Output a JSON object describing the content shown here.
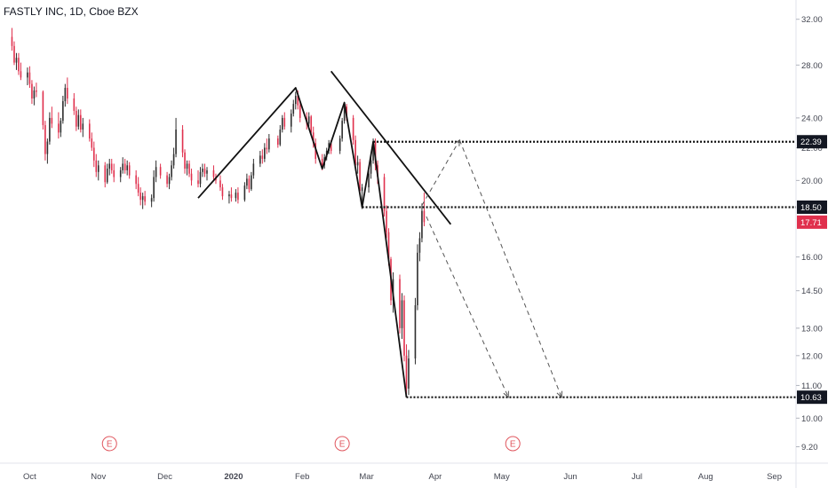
{
  "header": {
    "title": "FASTLY INC, 1D, Cboe BZX"
  },
  "colors": {
    "up": "#2e2e2e",
    "down": "#e0304d",
    "drawing": "#111111",
    "dashed": "#555555",
    "tag_bg_dark": "#131722",
    "tag_bg_red": "#e0304d",
    "tag_text": "#ffffff",
    "axis_text": "#434651",
    "earnings": "#e0565e",
    "border": "#e0e3eb"
  },
  "chart_data": {
    "type": "candlestick",
    "title": "FASTLY INC, 1D, Cboe BZX",
    "x_axis": {
      "ticks": [
        "Oct",
        "Nov",
        "Dec",
        "2020",
        "Feb",
        "Mar",
        "Apr",
        "May",
        "Jun",
        "Jul",
        "Aug",
        "Sep"
      ],
      "bold_ticks": [
        "2020"
      ],
      "range": [
        "2019-09-20",
        "2020-09-10"
      ]
    },
    "y_axis": {
      "scale": "log",
      "ticks": [
        32.0,
        28.0,
        24.0,
        22.0,
        20.0,
        16.0,
        14.5,
        13.0,
        12.0,
        11.0,
        10.0,
        9.2
      ],
      "range": [
        9.0,
        33.5
      ]
    },
    "candles": [
      [
        "2019-09-23",
        30.4,
        31.2,
        29.2,
        29.6
      ],
      [
        "2019-09-24",
        29.6,
        30.0,
        28.0,
        28.2
      ],
      [
        "2019-09-25",
        28.2,
        29.0,
        27.6,
        28.6
      ],
      [
        "2019-09-26",
        28.6,
        29.0,
        27.2,
        27.5
      ],
      [
        "2019-09-27",
        27.5,
        28.2,
        26.8,
        27.0
      ],
      [
        "2019-09-30",
        27.0,
        27.8,
        26.4,
        27.4
      ],
      [
        "2019-10-01",
        27.4,
        27.9,
        26.2,
        26.5
      ],
      [
        "2019-10-02",
        26.5,
        26.8,
        25.0,
        25.4
      ],
      [
        "2019-10-03",
        25.4,
        26.3,
        24.9,
        26.0
      ],
      [
        "2019-10-04",
        26.0,
        26.6,
        25.5,
        25.9
      ],
      [
        "2019-10-07",
        25.9,
        26.0,
        23.2,
        23.5
      ],
      [
        "2019-10-08",
        23.5,
        23.8,
        21.2,
        21.6
      ],
      [
        "2019-10-09",
        21.6,
        22.6,
        21.0,
        22.4
      ],
      [
        "2019-10-10",
        22.4,
        24.4,
        22.2,
        24.0
      ],
      [
        "2019-10-11",
        24.0,
        24.8,
        23.3,
        23.6
      ],
      [
        "2019-10-14",
        23.6,
        24.4,
        22.6,
        23.0
      ],
      [
        "2019-10-15",
        23.0,
        24.0,
        22.7,
        23.8
      ],
      [
        "2019-10-16",
        23.8,
        25.6,
        23.6,
        25.2
      ],
      [
        "2019-10-17",
        25.2,
        26.5,
        24.8,
        26.2
      ],
      [
        "2019-10-18",
        26.2,
        27.0,
        25.0,
        25.4
      ],
      [
        "2019-10-21",
        25.4,
        25.8,
        24.2,
        24.5
      ],
      [
        "2019-10-22",
        24.5,
        24.8,
        23.1,
        23.4
      ],
      [
        "2019-10-23",
        23.4,
        24.6,
        23.2,
        24.2
      ],
      [
        "2019-10-24",
        24.2,
        24.6,
        23.0,
        23.2
      ],
      [
        "2019-10-25",
        23.2,
        24.0,
        22.7,
        23.6
      ],
      [
        "2019-10-28",
        23.6,
        23.9,
        22.4,
        22.6
      ],
      [
        "2019-10-29",
        22.6,
        23.0,
        21.8,
        22.0
      ],
      [
        "2019-10-30",
        22.0,
        22.4,
        20.8,
        21.2
      ],
      [
        "2019-10-31",
        21.2,
        21.6,
        20.2,
        20.5
      ],
      [
        "2019-11-01",
        20.5,
        21.2,
        20.0,
        20.9
      ],
      [
        "2019-11-04",
        20.9,
        21.1,
        19.6,
        19.9
      ],
      [
        "2019-11-05",
        19.9,
        21.0,
        19.8,
        20.7
      ],
      [
        "2019-11-06",
        20.7,
        21.3,
        20.3,
        21.0
      ],
      [
        "2019-11-07",
        21.0,
        21.3,
        20.4,
        20.6
      ],
      [
        "2019-11-08",
        20.6,
        21.0,
        19.9,
        20.2
      ],
      [
        "2019-11-11",
        20.2,
        20.8,
        19.9,
        20.6
      ],
      [
        "2019-11-12",
        20.6,
        21.4,
        20.4,
        21.0
      ],
      [
        "2019-11-13",
        21.0,
        21.3,
        20.4,
        20.6
      ],
      [
        "2019-11-14",
        20.6,
        21.2,
        20.3,
        20.9
      ],
      [
        "2019-11-15",
        20.9,
        21.1,
        20.1,
        20.3
      ],
      [
        "2019-11-18",
        20.3,
        20.6,
        19.5,
        19.8
      ],
      [
        "2019-11-19",
        19.8,
        20.2,
        19.1,
        19.3
      ],
      [
        "2019-11-20",
        19.3,
        19.6,
        18.6,
        18.9
      ],
      [
        "2019-11-21",
        18.9,
        19.3,
        18.4,
        19.1
      ],
      [
        "2019-11-22",
        19.1,
        19.4,
        18.6,
        18.8
      ],
      [
        "2019-11-25",
        18.8,
        19.2,
        18.5,
        19.0
      ],
      [
        "2019-11-26",
        19.0,
        20.6,
        18.8,
        20.2
      ],
      [
        "2019-11-27",
        20.2,
        21.2,
        19.9,
        20.8
      ],
      [
        "2019-11-29",
        20.8,
        21.0,
        20.1,
        20.3
      ],
      [
        "2019-12-02",
        20.3,
        20.5,
        19.6,
        19.8
      ],
      [
        "2019-12-03",
        19.8,
        20.4,
        19.5,
        20.2
      ],
      [
        "2019-12-04",
        20.2,
        21.2,
        20.0,
        20.9
      ],
      [
        "2019-12-05",
        20.9,
        22.0,
        20.7,
        21.6
      ],
      [
        "2019-12-06",
        21.6,
        24.0,
        21.4,
        23.2
      ],
      [
        "2019-12-09",
        23.2,
        23.5,
        21.4,
        21.7
      ],
      [
        "2019-12-10",
        21.7,
        21.9,
        20.4,
        20.7
      ],
      [
        "2019-12-11",
        20.7,
        21.2,
        20.3,
        21.0
      ],
      [
        "2019-12-12",
        21.0,
        21.2,
        20.2,
        20.4
      ],
      [
        "2019-12-13",
        20.4,
        20.7,
        19.7,
        20.0
      ],
      [
        "2019-12-16",
        20.0,
        20.6,
        19.6,
        19.8
      ],
      [
        "2019-12-17",
        19.8,
        20.8,
        19.6,
        20.5
      ],
      [
        "2019-12-18",
        20.5,
        21.0,
        20.2,
        20.7
      ],
      [
        "2019-12-19",
        20.7,
        21.0,
        20.2,
        20.4
      ],
      [
        "2019-12-20",
        20.4,
        20.8,
        20.0,
        20.6
      ],
      [
        "2019-12-23",
        20.6,
        20.9,
        20.0,
        20.2
      ],
      [
        "2019-12-24",
        20.2,
        20.4,
        19.8,
        20.0
      ],
      [
        "2019-12-26",
        20.0,
        20.3,
        19.4,
        19.6
      ],
      [
        "2019-12-27",
        19.6,
        19.8,
        18.9,
        19.1
      ],
      [
        "2019-12-30",
        19.1,
        19.4,
        18.7,
        19.2
      ],
      [
        "2019-12-31",
        19.2,
        19.6,
        18.8,
        19.0
      ],
      [
        "2020-01-02",
        19.0,
        19.5,
        18.8,
        19.3
      ],
      [
        "2020-01-03",
        19.3,
        19.6,
        18.7,
        18.9
      ],
      [
        "2020-01-06",
        18.9,
        19.9,
        18.8,
        19.7
      ],
      [
        "2020-01-07",
        19.7,
        20.4,
        19.5,
        20.1
      ],
      [
        "2020-01-08",
        20.1,
        20.3,
        19.3,
        19.5
      ],
      [
        "2020-01-09",
        19.5,
        20.5,
        19.4,
        20.3
      ],
      [
        "2020-01-10",
        20.3,
        21.3,
        20.1,
        21.0
      ],
      [
        "2020-01-13",
        21.0,
        21.8,
        20.8,
        21.5
      ],
      [
        "2020-01-14",
        21.5,
        21.9,
        21.0,
        21.3
      ],
      [
        "2020-01-15",
        21.3,
        22.3,
        21.1,
        22.0
      ],
      [
        "2020-01-16",
        22.0,
        22.6,
        21.6,
        21.9
      ],
      [
        "2020-01-17",
        21.9,
        22.9,
        21.7,
        22.6
      ],
      [
        "2020-01-21",
        22.6,
        22.8,
        22.0,
        22.2
      ],
      [
        "2020-01-22",
        22.2,
        23.5,
        22.1,
        23.2
      ],
      [
        "2020-01-23",
        23.2,
        24.2,
        23.0,
        24.0
      ],
      [
        "2020-01-24",
        24.0,
        24.4,
        23.2,
        23.4
      ],
      [
        "2020-01-27",
        23.4,
        24.6,
        23.0,
        24.3
      ],
      [
        "2020-01-28",
        24.3,
        25.3,
        24.1,
        25.0
      ],
      [
        "2020-01-29",
        25.0,
        25.9,
        24.6,
        25.6
      ],
      [
        "2020-01-30",
        25.6,
        26.0,
        24.6,
        24.9
      ],
      [
        "2020-01-31",
        24.9,
        25.2,
        23.7,
        24.0
      ],
      [
        "2020-02-03",
        24.0,
        24.4,
        23.2,
        23.6
      ],
      [
        "2020-02-04",
        23.6,
        24.4,
        23.4,
        24.1
      ],
      [
        "2020-02-05",
        24.1,
        24.2,
        22.8,
        23.0
      ],
      [
        "2020-02-06",
        23.0,
        23.4,
        22.0,
        22.3
      ],
      [
        "2020-02-07",
        22.3,
        22.6,
        21.0,
        21.3
      ],
      [
        "2020-02-10",
        21.3,
        21.6,
        20.6,
        20.9
      ],
      [
        "2020-02-11",
        20.9,
        21.6,
        20.7,
        21.4
      ],
      [
        "2020-02-12",
        21.4,
        22.0,
        21.2,
        21.8
      ],
      [
        "2020-02-13",
        21.8,
        22.5,
        21.6,
        22.3
      ],
      [
        "2020-02-14",
        22.3,
        22.5,
        21.6,
        21.8
      ],
      [
        "2020-02-18",
        21.8,
        22.8,
        21.6,
        22.6
      ],
      [
        "2020-02-19",
        22.6,
        24.0,
        22.4,
        23.8
      ],
      [
        "2020-02-20",
        23.8,
        25.1,
        23.6,
        24.8
      ],
      [
        "2020-02-21",
        24.8,
        25.0,
        23.8,
        24.0
      ],
      [
        "2020-02-24",
        24.0,
        24.2,
        22.2,
        22.5
      ],
      [
        "2020-02-25",
        22.5,
        22.8,
        20.6,
        20.9
      ],
      [
        "2020-02-26",
        20.9,
        21.5,
        20.4,
        21.1
      ],
      [
        "2020-02-27",
        21.1,
        21.3,
        19.2,
        19.4
      ],
      [
        "2020-02-28",
        19.4,
        19.8,
        18.4,
        19.6
      ],
      [
        "2020-03-02",
        19.6,
        20.6,
        19.3,
        20.4
      ],
      [
        "2020-03-03",
        20.4,
        21.6,
        20.1,
        21.2
      ],
      [
        "2020-03-04",
        21.2,
        22.6,
        21.0,
        22.4
      ],
      [
        "2020-03-05",
        22.4,
        22.6,
        20.6,
        20.9
      ],
      [
        "2020-03-06",
        20.9,
        21.2,
        19.8,
        20.2
      ],
      [
        "2020-03-09",
        20.2,
        20.4,
        18.0,
        18.3
      ],
      [
        "2020-03-10",
        18.3,
        18.6,
        16.9,
        17.2
      ],
      [
        "2020-03-11",
        17.2,
        17.4,
        15.6,
        15.9
      ],
      [
        "2020-03-12",
        15.9,
        16.0,
        13.9,
        14.1
      ],
      [
        "2020-03-13",
        14.1,
        15.3,
        13.6,
        15.0
      ],
      [
        "2020-03-16",
        15.0,
        15.2,
        12.8,
        13.0
      ],
      [
        "2020-03-17",
        13.0,
        14.4,
        12.6,
        14.1
      ],
      [
        "2020-03-18",
        14.1,
        14.3,
        11.8,
        12.0
      ],
      [
        "2020-03-19",
        12.0,
        12.4,
        10.63,
        10.9
      ],
      [
        "2020-03-20",
        10.9,
        12.2,
        10.7,
        11.9
      ],
      [
        "2020-03-23",
        11.9,
        14.2,
        11.7,
        13.9
      ],
      [
        "2020-03-24",
        13.9,
        16.6,
        13.7,
        16.2
      ],
      [
        "2020-03-25",
        16.2,
        17.2,
        15.8,
        16.9
      ],
      [
        "2020-03-26",
        16.9,
        18.7,
        16.7,
        18.3
      ],
      [
        "2020-03-27",
        18.3,
        19.3,
        17.5,
        17.71
      ]
    ],
    "annotations": {
      "price_levels": [
        {
          "label": "22.39",
          "value": 22.39,
          "from": "2020-03-04",
          "style": "dotted",
          "tag": "dark"
        },
        {
          "label": "18.50",
          "value": 18.5,
          "from": "2020-02-28",
          "style": "dotted",
          "tag": "dark"
        },
        {
          "label": "10.63",
          "value": 10.63,
          "from": "2020-03-19",
          "style": "dotted",
          "tag": "dark"
        }
      ],
      "current_price": {
        "label": "17.71",
        "value": 17.71,
        "tag": "red"
      },
      "polylines": [
        {
          "points": [
            [
              "2019-12-16",
              19.0
            ],
            [
              "2020-01-29",
              26.2
            ],
            [
              "2020-02-10",
              20.7
            ],
            [
              "2020-02-20",
              25.1
            ],
            [
              "2020-02-28",
              18.5
            ],
            [
              "2020-03-04",
              22.4
            ],
            [
              "2020-03-19",
              10.63
            ]
          ]
        }
      ],
      "trendlines": [
        {
          "from": [
            "2020-02-14",
            27.5
          ],
          "to": [
            "2020-04-08",
            17.6
          ]
        }
      ],
      "dashed_arrows": [
        {
          "from": [
            "2020-03-26",
            18.6
          ],
          "to": [
            "2020-04-12",
            22.5
          ]
        },
        {
          "from": [
            "2020-04-12",
            22.5
          ],
          "to": [
            "2020-05-28",
            10.63
          ]
        },
        {
          "from": [
            "2020-03-28",
            18.0
          ],
          "to": [
            "2020-05-04",
            10.63
          ]
        }
      ],
      "earnings_markers": [
        {
          "label": "E",
          "date": "2019-11-06"
        },
        {
          "label": "E",
          "date": "2020-02-19"
        },
        {
          "label": "E",
          "date": "2020-05-06"
        }
      ]
    }
  }
}
